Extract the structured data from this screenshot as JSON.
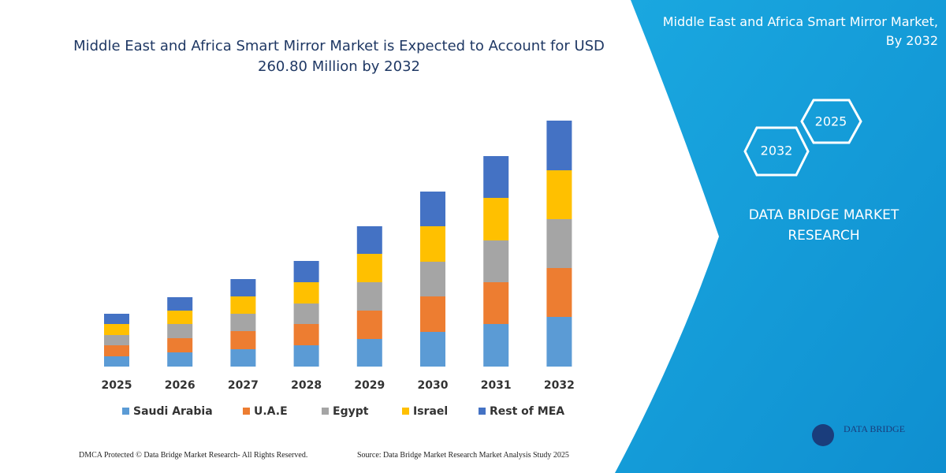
{
  "chart_data": {
    "type": "bar",
    "stacked": true,
    "title": "Middle East and Africa Smart Mirror Market is Expected to Account for USD 260.80 Million by 2032",
    "categories": [
      "2025",
      "2026",
      "2027",
      "2028",
      "2029",
      "2030",
      "2031",
      "2032"
    ],
    "series": [
      {
        "name": "Saudi Arabia",
        "color": "#5b9bd5",
        "values": [
          13,
          18,
          22,
          27,
          35,
          44,
          54,
          63
        ]
      },
      {
        "name": "U.A.E",
        "color": "#ed7d31",
        "values": [
          14,
          18,
          23,
          27,
          36,
          45,
          53,
          62
        ]
      },
      {
        "name": "Egypt",
        "color": "#a5a5a5",
        "values": [
          13,
          18,
          22,
          26,
          36,
          44,
          53,
          62
        ]
      },
      {
        "name": "Israel",
        "color": "#ffc000",
        "values": [
          14,
          17,
          22,
          27,
          36,
          45,
          54,
          62
        ]
      },
      {
        "name": "Rest of MEA",
        "color": "#4472c4",
        "values": [
          13,
          17,
          22,
          27,
          35,
          44,
          53,
          63
        ]
      }
    ],
    "ylim": [
      0,
      320
    ],
    "grid": false,
    "legend": "bottom"
  },
  "panel": {
    "title": "Middle East and Africa Smart Mirror Market, By 2032",
    "hex_front": "2032",
    "hex_back": "2025",
    "brand": "DATA BRIDGE MARKET RESEARCH",
    "logo": "DATA BRIDGE"
  },
  "footer": {
    "left": "DMCA Protected © Data Bridge Market Research- All Rights Reserved.",
    "right": "Source: Data Bridge Market Research Market Analysis Study 2025"
  }
}
